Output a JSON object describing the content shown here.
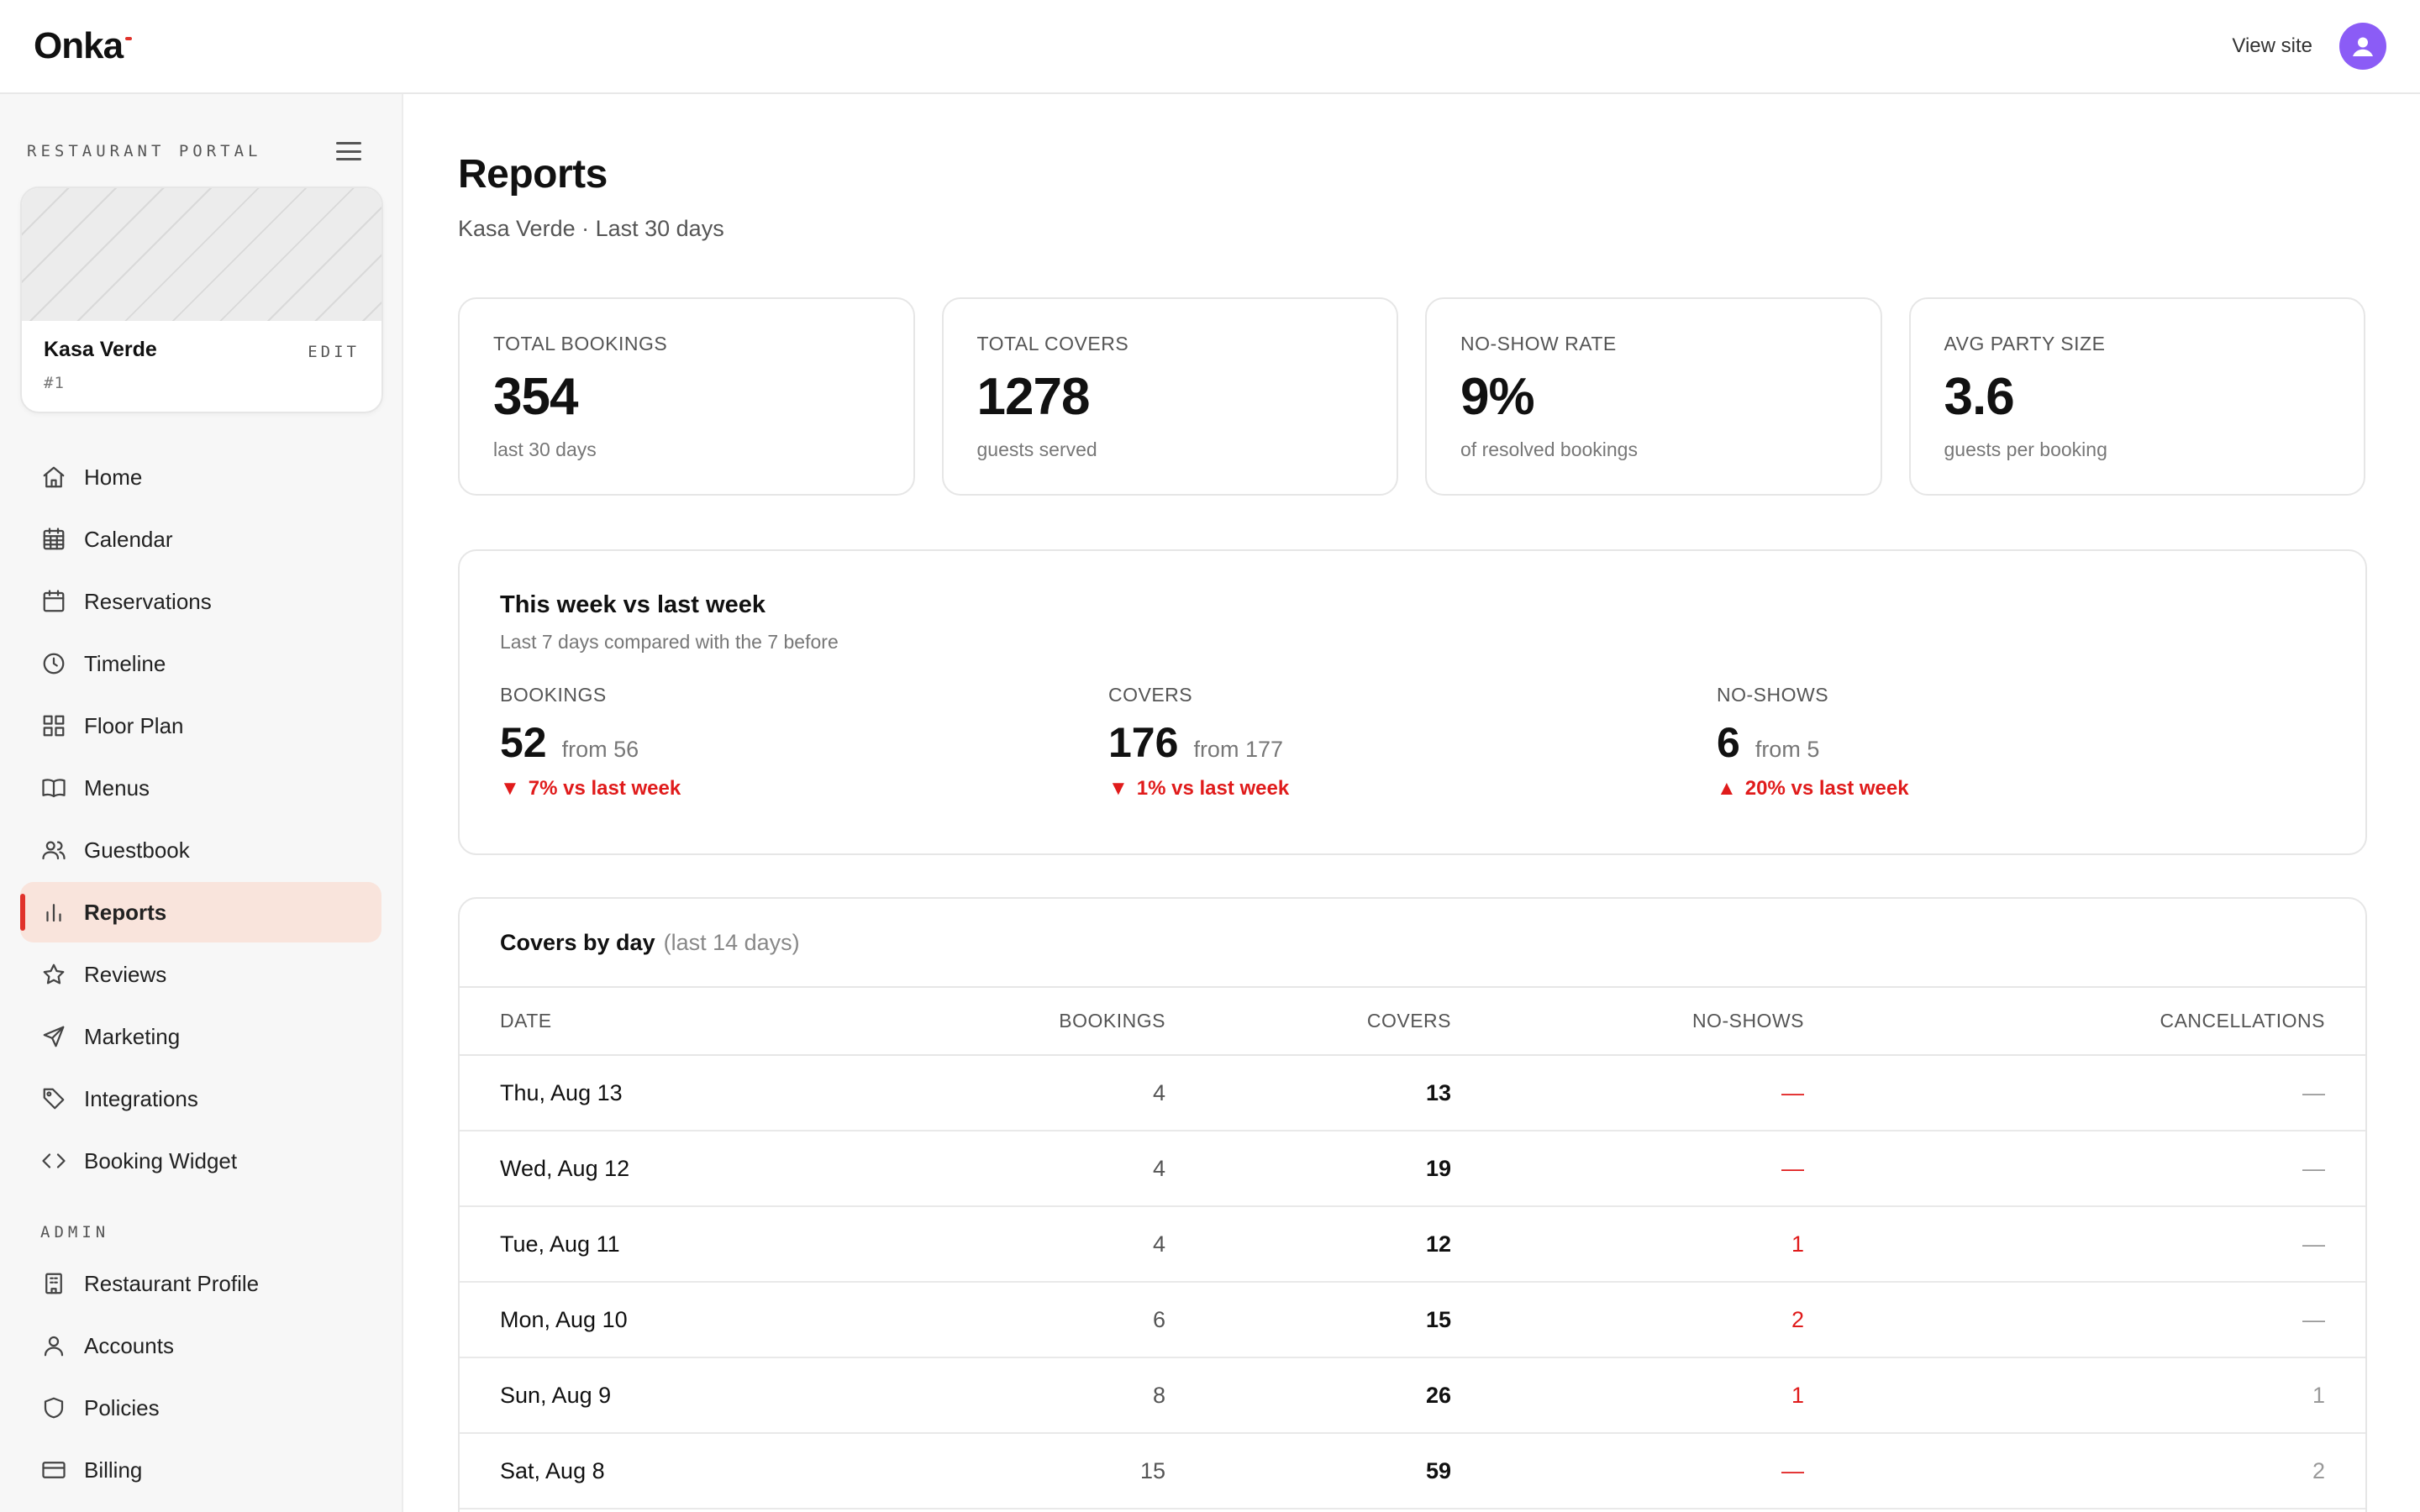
{
  "brand": {
    "name": "Onka"
  },
  "topbar": {
    "view_site": "View site"
  },
  "sidebar": {
    "portal_label": "RESTAURANT PORTAL",
    "restaurant": {
      "name": "Kasa Verde",
      "id": "#1",
      "edit": "EDIT"
    },
    "items": [
      {
        "label": "Home",
        "icon": "home-icon"
      },
      {
        "label": "Calendar",
        "icon": "calendar-grid-icon"
      },
      {
        "label": "Reservations",
        "icon": "calendar-icon"
      },
      {
        "label": "Timeline",
        "icon": "clock-icon"
      },
      {
        "label": "Floor Plan",
        "icon": "grid-icon"
      },
      {
        "label": "Menus",
        "icon": "book-icon"
      },
      {
        "label": "Guestbook",
        "icon": "users-icon"
      },
      {
        "label": "Reports",
        "icon": "bar-chart-icon",
        "active": true
      },
      {
        "label": "Reviews",
        "icon": "star-icon"
      },
      {
        "label": "Marketing",
        "icon": "send-icon"
      },
      {
        "label": "Integrations",
        "icon": "tag-icon"
      },
      {
        "label": "Booking Widget",
        "icon": "code-icon"
      }
    ],
    "admin_label": "ADMIN",
    "admin_items": [
      {
        "label": "Restaurant Profile",
        "icon": "building-icon"
      },
      {
        "label": "Accounts",
        "icon": "user-icon"
      },
      {
        "label": "Policies",
        "icon": "shield-icon"
      },
      {
        "label": "Billing",
        "icon": "credit-card-icon"
      }
    ]
  },
  "page": {
    "title": "Reports",
    "subtitle": "Kasa Verde · Last 30 days"
  },
  "stats": [
    {
      "label": "TOTAL BOOKINGS",
      "value": "354",
      "caption": "last 30 days"
    },
    {
      "label": "TOTAL COVERS",
      "value": "1278",
      "caption": "guests served"
    },
    {
      "label": "NO-SHOW RATE",
      "value": "9%",
      "caption": "of resolved bookings"
    },
    {
      "label": "AVG PARTY SIZE",
      "value": "3.6",
      "caption": "guests per booking"
    }
  ],
  "compare": {
    "title": "This week vs last week",
    "subtitle": "Last 7 days compared with the 7 before",
    "metrics": [
      {
        "label": "BOOKINGS",
        "value": "52",
        "from": "from 56",
        "delta": "7% vs last week",
        "arrow": "▼"
      },
      {
        "label": "COVERS",
        "value": "176",
        "from": "from 177",
        "delta": "1% vs last week",
        "arrow": "▼"
      },
      {
        "label": "NO-SHOWS",
        "value": "6",
        "from": "from 5",
        "delta": "20% vs last week",
        "arrow": "▲"
      }
    ]
  },
  "table": {
    "title": "Covers by day",
    "title_note": "(last 14 days)",
    "columns": [
      "DATE",
      "BOOKINGS",
      "COVERS",
      "NO-SHOWS",
      "CANCELLATIONS"
    ],
    "rows": [
      [
        "Thu, Aug 13",
        "4",
        "13",
        "—",
        "—"
      ],
      [
        "Wed, Aug 12",
        "4",
        "19",
        "—",
        "—"
      ],
      [
        "Tue, Aug 11",
        "4",
        "12",
        "1",
        "—"
      ],
      [
        "Mon, Aug 10",
        "6",
        "15",
        "2",
        "—"
      ],
      [
        "Sun, Aug 9",
        "8",
        "26",
        "1",
        "1"
      ],
      [
        "Sat, Aug 8",
        "15",
        "59",
        "—",
        "2"
      ]
    ]
  },
  "colors": {
    "accent": "#e0322b",
    "negative": "#e01b1b",
    "active_bg": "#f9e4dc",
    "avatar": "#8b5cf6"
  }
}
